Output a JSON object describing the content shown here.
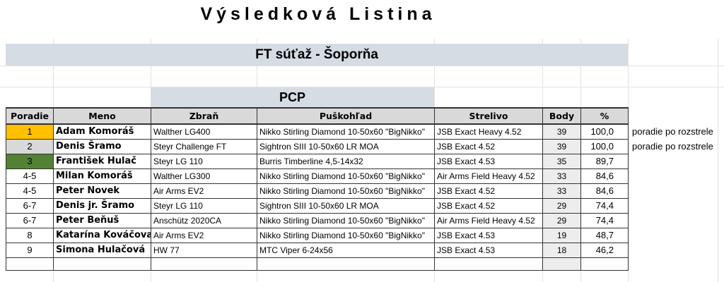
{
  "title": "Výsledková Listina",
  "event": "FT súťaž - Šoporňa",
  "category": "PCP",
  "headers": [
    "Poradie",
    "Meno",
    "Zbraň",
    "Puškohľad",
    "Strelivo",
    "Body",
    "%"
  ],
  "rank_colors": {
    "1": "#ffc000",
    "2": "#d9d9d9",
    "3": "#548235"
  },
  "rows": [
    {
      "rank": "1",
      "name": "Adam Komoráš",
      "gun": "Walther LG400",
      "scope": "Nikko Stirling Diamond 10-50x60 \"BigNikko\"",
      "ammo": "JSB Exact Heavy 4.52",
      "points": "39",
      "pct": "100,0",
      "note": "poradie po rozstrele"
    },
    {
      "rank": "2",
      "name": "Denis Šramo",
      "gun": "Steyr Challenge FT",
      "scope": "Sightron SIII 10-50x60 LR MOA",
      "ammo": "JSB Exact 4.52",
      "points": "39",
      "pct": "100,0",
      "note": "poradie po rozstrele"
    },
    {
      "rank": "3",
      "name": "František Hulač",
      "gun": "Steyr LG 110",
      "scope": "Burris Timberline 4,5-14x32",
      "ammo": "JSB Exact 4.53",
      "points": "35",
      "pct": "89,7"
    },
    {
      "rank": "4-5",
      "name": "Milan Komoráš",
      "gun": "Walther LG300",
      "scope": "Nikko Stirling Diamond 10-50x60 \"BigNikko\"",
      "ammo": "Air Arms Field Heavy 4.52",
      "points": "33",
      "pct": "84,6"
    },
    {
      "rank": "4-5",
      "name": "Peter Novek",
      "gun": "Air Arms EV2",
      "scope": "Nikko Stirling Diamond 10-50x60 \"BigNikko\"",
      "ammo": "JSB Exact 4.52",
      "points": "33",
      "pct": "84,6"
    },
    {
      "rank": "6-7",
      "name": "Denis jr. Šramo",
      "gun": "Steyr LG 110",
      "scope": "Sightron SIII 10-50x60 LR MOA",
      "ammo": "JSB Exact 4.52",
      "points": "29",
      "pct": "74,4"
    },
    {
      "rank": "6-7",
      "name": "Peter Beňuš",
      "gun": "Anschütz 2020CA",
      "scope": "Nikko Stirling Diamond 10-50x60 \"BigNikko\"",
      "ammo": "Air Arms Field Heavy 4.52",
      "points": "29",
      "pct": "74,4"
    },
    {
      "rank": "8",
      "name": "Katarína Kováčova",
      "gun": "Air Arms EV2",
      "scope": "Nikko Stirling Diamond 10-50x60 \"BigNikko\"",
      "ammo": "JSB Exact 4.53",
      "points": "19",
      "pct": "48,7"
    },
    {
      "rank": "9",
      "name": "Simona Hulačová",
      "gun": "HW 77",
      "scope": "MTC Viper 6-24x56",
      "ammo": "JSB Exact 4.53",
      "points": "18",
      "pct": "46,2"
    }
  ]
}
